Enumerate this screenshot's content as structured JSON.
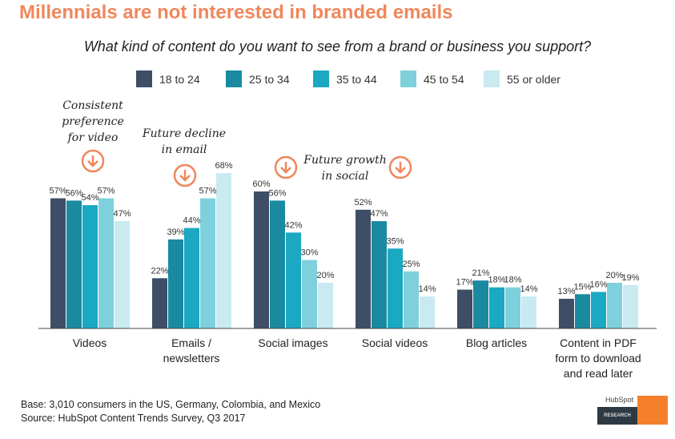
{
  "title": "Millennials are not interested in branded emails",
  "chart_data": {
    "type": "bar",
    "title": "What kind of content do you want to see from a brand or business you support?",
    "categories": [
      "Videos",
      "Emails / newsletters",
      "Social images",
      "Social videos",
      "Blog articles",
      "Content in PDF form to download and read later"
    ],
    "category_lines": [
      [
        "Videos"
      ],
      [
        "Emails /",
        "newsletters"
      ],
      [
        "Social images"
      ],
      [
        "Social videos"
      ],
      [
        "Blog articles"
      ],
      [
        "Content in PDF",
        "form to download",
        "and read later"
      ]
    ],
    "series": [
      {
        "name": "18 to 24",
        "color": "#3d4e66",
        "values": [
          57,
          22,
          60,
          52,
          17,
          13
        ]
      },
      {
        "name": "25 to 34",
        "color": "#1a8aa0",
        "values": [
          56,
          39,
          56,
          47,
          21,
          15
        ]
      },
      {
        "name": "35 to 44",
        "color": "#1aa8c2",
        "values": [
          54,
          44,
          42,
          35,
          18,
          16
        ]
      },
      {
        "name": "45 to 54",
        "color": "#7fd0dd",
        "values": [
          57,
          57,
          30,
          25,
          18,
          20
        ]
      },
      {
        "name": "55 or older",
        "color": "#c8eaf0",
        "values": [
          47,
          68,
          20,
          14,
          14,
          19
        ]
      }
    ],
    "value_suffix": "%",
    "legend": "top",
    "grid": false,
    "ylim": [
      0,
      70
    ]
  },
  "annotations": {
    "video": "Consistent preference for video",
    "email": "Future decline in email",
    "social": "Future growth in social"
  },
  "footer": {
    "base": "Base: 3,010 consumers in the US, Germany, Colombia, and Mexico",
    "source": "Source: HubSpot Content Trends Survey, Q3 2017"
  },
  "logo": {
    "brand": "HubSpot",
    "label": "RESEARCH"
  },
  "accent": "#f0875c"
}
